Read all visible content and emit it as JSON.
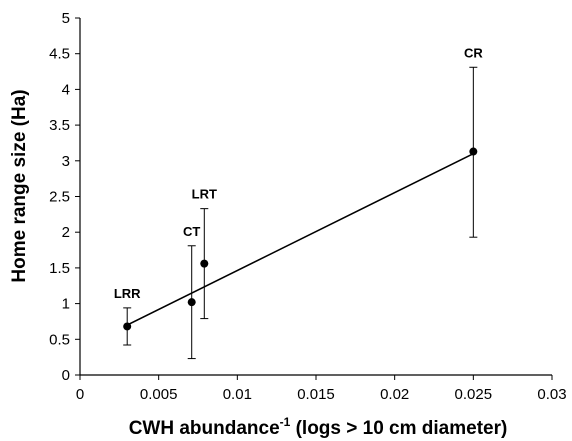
{
  "chart_data": {
    "type": "scatter",
    "xlabel": {
      "main": "CWH abundance",
      "superscript": "-1",
      "rest": " (logs > 10 cm diameter)"
    },
    "ylabel": "Home range size (Ha)",
    "xlim": [
      0,
      0.03
    ],
    "ylim": [
      0,
      5
    ],
    "xticks": [
      0,
      0.005,
      0.01,
      0.015,
      0.02,
      0.025,
      0.03
    ],
    "yticks": [
      0,
      0.5,
      1,
      1.5,
      2,
      2.5,
      3,
      3.5,
      4,
      4.5,
      5
    ],
    "grid": false,
    "points": [
      {
        "label": "LRR",
        "x": 0.003,
        "y": 0.68,
        "err_low": 0.42,
        "err_high": 0.94
      },
      {
        "label": "CT",
        "x": 0.0071,
        "y": 1.02,
        "err_low": 0.23,
        "err_high": 1.81
      },
      {
        "label": "LRT",
        "x": 0.0079,
        "y": 1.56,
        "err_low": 0.79,
        "err_high": 2.33
      },
      {
        "label": "CR",
        "x": 0.025,
        "y": 3.13,
        "err_low": 1.93,
        "err_high": 4.31
      }
    ],
    "trendline": {
      "x": [
        0.003,
        0.025
      ],
      "y": [
        0.7,
        3.1
      ]
    }
  }
}
